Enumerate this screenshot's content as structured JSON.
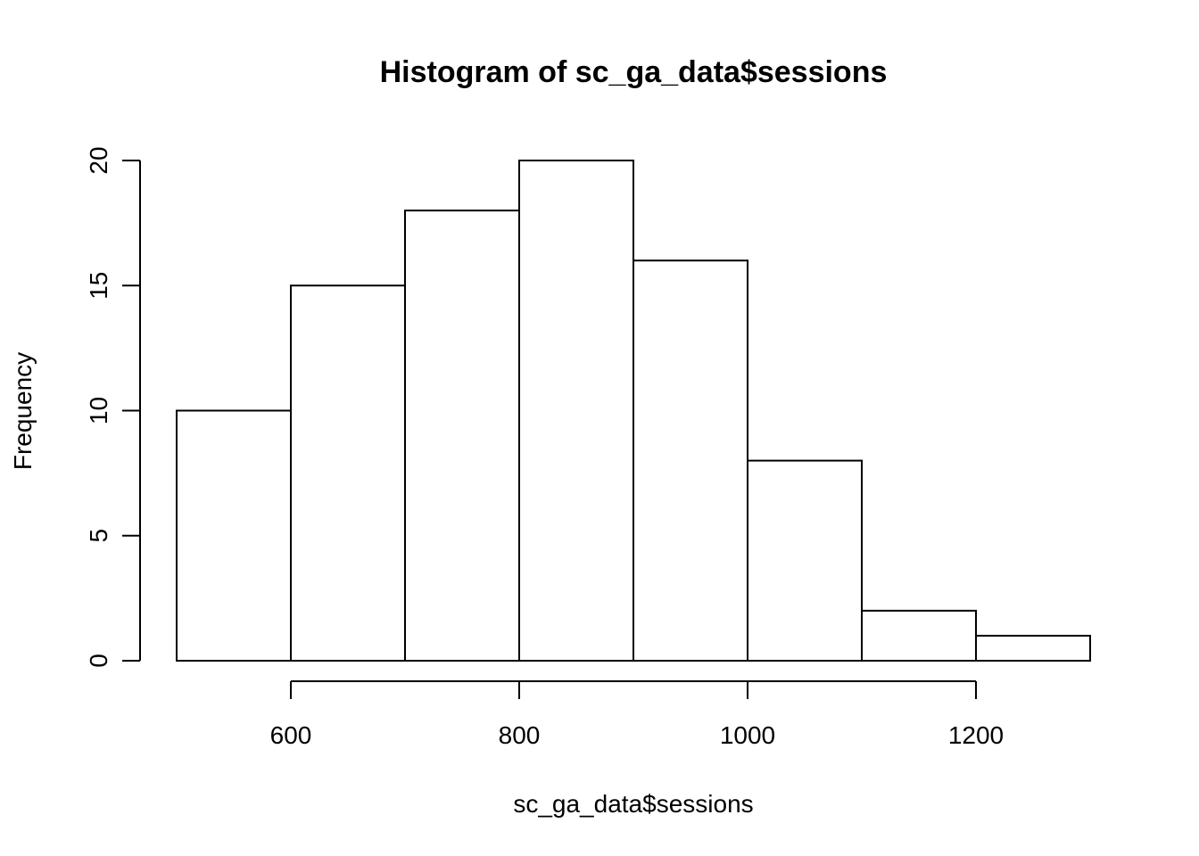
{
  "chart_data": {
    "type": "bar",
    "subtype": "histogram",
    "title": "Histogram of sc_ga_data$sessions",
    "xlabel": "sc_ga_data$sessions",
    "ylabel": "Frequency",
    "bins": [
      {
        "start": 500,
        "end": 600,
        "count": 10
      },
      {
        "start": 600,
        "end": 700,
        "count": 15
      },
      {
        "start": 700,
        "end": 800,
        "count": 18
      },
      {
        "start": 800,
        "end": 900,
        "count": 20
      },
      {
        "start": 900,
        "end": 1000,
        "count": 16
      },
      {
        "start": 1000,
        "end": 1100,
        "count": 8
      },
      {
        "start": 1100,
        "end": 1200,
        "count": 2
      },
      {
        "start": 1200,
        "end": 1300,
        "count": 1
      }
    ],
    "x_ticks": [
      600,
      800,
      1000,
      1200
    ],
    "y_ticks": [
      0,
      5,
      10,
      15,
      20
    ],
    "xlim": [
      500,
      1300
    ],
    "ylim": [
      0,
      20
    ],
    "grid": false,
    "bar_fill": "#ffffff",
    "bar_stroke": "#000000"
  }
}
